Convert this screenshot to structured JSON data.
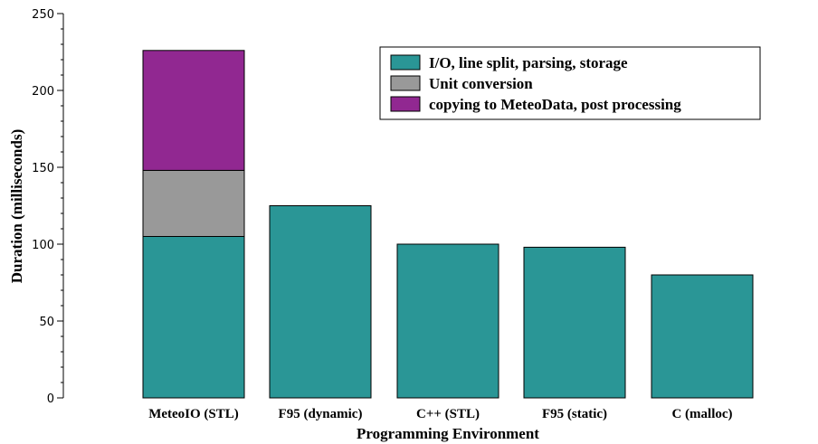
{
  "chart_data": {
    "type": "bar",
    "stacked": true,
    "categories": [
      "MeteoIO (STL)",
      "F95 (dynamic)",
      "C++ (STL)",
      "F95 (static)",
      "C (malloc)"
    ],
    "series": [
      {
        "name": "I/O, line split, parsing, storage",
        "color": "#2a9696",
        "values": [
          105,
          125,
          100,
          98,
          80
        ]
      },
      {
        "name": "Unit conversion",
        "color": "#999999",
        "values": [
          43,
          0,
          0,
          0,
          0
        ]
      },
      {
        "name": "copying to MeteoData, post processing",
        "color": "#912891",
        "values": [
          78,
          0,
          0,
          0,
          0
        ]
      }
    ],
    "xlabel": "Programming Environment",
    "ylabel": "Duration (milliseconds)",
    "ylim": [
      0,
      250
    ],
    "yticks": [
      0,
      50,
      100,
      150,
      200,
      250
    ],
    "grid": false,
    "legend_position": "top-right"
  }
}
